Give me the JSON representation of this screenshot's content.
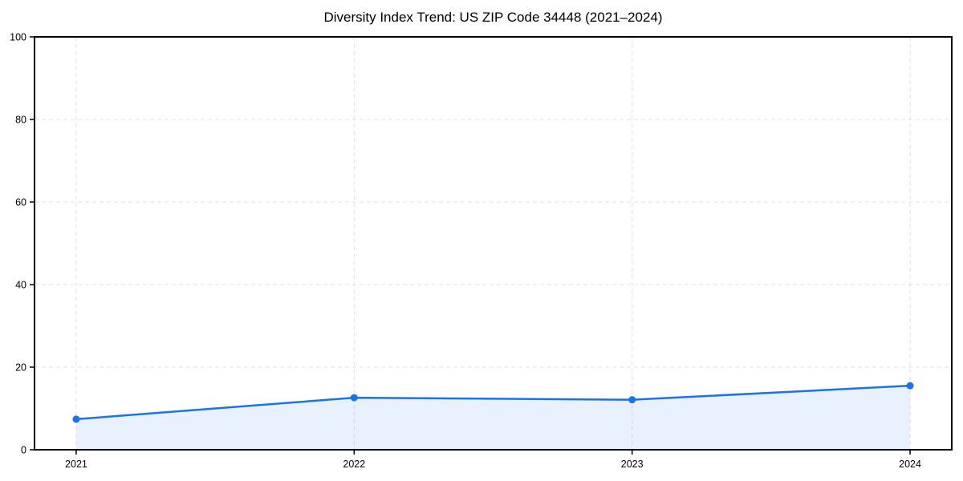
{
  "chart_data": {
    "type": "line",
    "title": "Diversity Index Trend: US ZIP Code 34448 (2021–2024)",
    "x": [
      2021,
      2022,
      2023,
      2024
    ],
    "categories": [
      "2021",
      "2022",
      "2023",
      "2024"
    ],
    "series": [
      {
        "name": "Diversity Index",
        "values": [
          7.4,
          12.6,
          12.1,
          15.5
        ]
      }
    ],
    "xlabel": "",
    "ylabel": "",
    "ylim": [
      0,
      100
    ],
    "yticks": [
      0,
      20,
      40,
      60,
      80,
      100
    ],
    "x_margin": 0.15,
    "grid": true,
    "grid_style": "dashed",
    "legend": false,
    "marker": "circle",
    "area_fill": true,
    "area_fill_baseline": 0,
    "colors": {
      "line": "#1a73e8",
      "marker": "#1a73e8",
      "area": "#1a73e8",
      "grid": "#e0e0e0",
      "spine": "#000000",
      "tick_text": "#000000",
      "title_text": "#000000",
      "background": "#ffffff"
    },
    "area_opacity": 0.1
  }
}
